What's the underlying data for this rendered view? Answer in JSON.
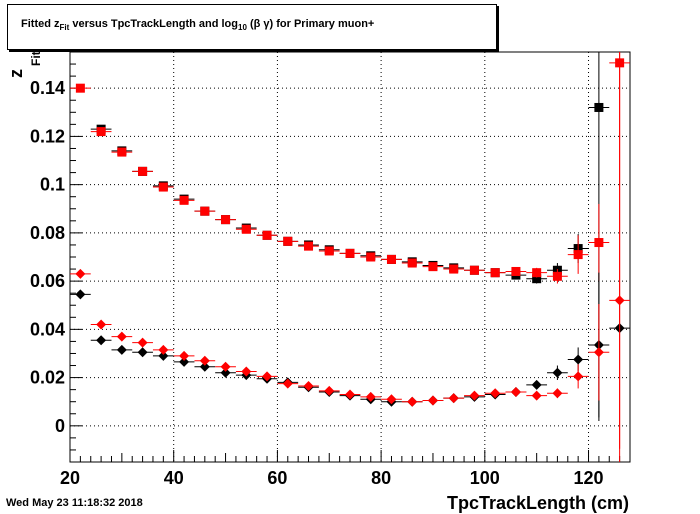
{
  "chart_data": {
    "type": "scatter",
    "title_prefix": "Fitted  z",
    "title_sub_fit": "Fit",
    "title_mid": "  versus TpcTrackLength and log",
    "title_sub_10": "10",
    "title_suffix": " (β γ) for Primary muon+",
    "xlabel": "TpcTrackLength (cm)",
    "ylabel_main": "z",
    "ylabel_sub": "Fit",
    "xlim": [
      20,
      128
    ],
    "ylim": [
      -0.015,
      0.155
    ],
    "xticks": [
      20,
      40,
      60,
      80,
      100,
      120
    ],
    "yticks": [
      0,
      0.02,
      0.04,
      0.06,
      0.08,
      0.1,
      0.12,
      0.14
    ],
    "ytick_labels": [
      "0",
      "0.02",
      "0.04",
      "0.06",
      "0.08",
      "0.1",
      "0.12",
      "0.14"
    ],
    "grid": true,
    "x_bin_half_width": 2,
    "series": [
      {
        "marker": "square",
        "color": "#000000",
        "points": [
          {
            "x": 26,
            "y": 0.123,
            "err": 0.0015
          },
          {
            "x": 30,
            "y": 0.114,
            "err": 0.0012
          },
          {
            "x": 34,
            "y": 0.1055,
            "err": 0.001
          },
          {
            "x": 38,
            "y": 0.0995,
            "err": 0.001
          },
          {
            "x": 42,
            "y": 0.094,
            "err": 0.001
          },
          {
            "x": 46,
            "y": 0.089,
            "err": 0.001
          },
          {
            "x": 50,
            "y": 0.0855,
            "err": 0.001
          },
          {
            "x": 54,
            "y": 0.082,
            "err": 0.001
          },
          {
            "x": 58,
            "y": 0.079,
            "err": 0.001
          },
          {
            "x": 62,
            "y": 0.0765,
            "err": 0.001
          },
          {
            "x": 66,
            "y": 0.075,
            "err": 0.001
          },
          {
            "x": 70,
            "y": 0.073,
            "err": 0.001
          },
          {
            "x": 74,
            "y": 0.0715,
            "err": 0.001
          },
          {
            "x": 78,
            "y": 0.0705,
            "err": 0.001
          },
          {
            "x": 82,
            "y": 0.069,
            "err": 0.001
          },
          {
            "x": 86,
            "y": 0.068,
            "err": 0.001
          },
          {
            "x": 90,
            "y": 0.0665,
            "err": 0.001
          },
          {
            "x": 94,
            "y": 0.0655,
            "err": 0.001
          },
          {
            "x": 98,
            "y": 0.0645,
            "err": 0.001
          },
          {
            "x": 102,
            "y": 0.0635,
            "err": 0.001
          },
          {
            "x": 106,
            "y": 0.0625,
            "err": 0.0015
          },
          {
            "x": 110,
            "y": 0.061,
            "err": 0.002
          },
          {
            "x": 114,
            "y": 0.0645,
            "err": 0.003
          },
          {
            "x": 118,
            "y": 0.0735,
            "err": 0.006
          },
          {
            "x": 122,
            "y": 0.132,
            "err": 0.13
          }
        ]
      },
      {
        "marker": "square",
        "color": "#ff0000",
        "points": [
          {
            "x": 22,
            "y": 0.14,
            "err": 0.001
          },
          {
            "x": 26,
            "y": 0.122,
            "err": 0.0015
          },
          {
            "x": 30,
            "y": 0.1135,
            "err": 0.0012
          },
          {
            "x": 34,
            "y": 0.1055,
            "err": 0.001
          },
          {
            "x": 38,
            "y": 0.099,
            "err": 0.001
          },
          {
            "x": 42,
            "y": 0.0935,
            "err": 0.001
          },
          {
            "x": 46,
            "y": 0.089,
            "err": 0.001
          },
          {
            "x": 50,
            "y": 0.0855,
            "err": 0.001
          },
          {
            "x": 54,
            "y": 0.0815,
            "err": 0.001
          },
          {
            "x": 58,
            "y": 0.079,
            "err": 0.001
          },
          {
            "x": 62,
            "y": 0.0765,
            "err": 0.001
          },
          {
            "x": 66,
            "y": 0.0745,
            "err": 0.001
          },
          {
            "x": 70,
            "y": 0.0725,
            "err": 0.001
          },
          {
            "x": 74,
            "y": 0.0715,
            "err": 0.001
          },
          {
            "x": 78,
            "y": 0.07,
            "err": 0.001
          },
          {
            "x": 82,
            "y": 0.069,
            "err": 0.001
          },
          {
            "x": 86,
            "y": 0.0675,
            "err": 0.001
          },
          {
            "x": 90,
            "y": 0.066,
            "err": 0.001
          },
          {
            "x": 94,
            "y": 0.065,
            "err": 0.001
          },
          {
            "x": 98,
            "y": 0.0645,
            "err": 0.001
          },
          {
            "x": 102,
            "y": 0.0635,
            "err": 0.001
          },
          {
            "x": 106,
            "y": 0.064,
            "err": 0.0015
          },
          {
            "x": 110,
            "y": 0.0635,
            "err": 0.002
          },
          {
            "x": 114,
            "y": 0.062,
            "err": 0.003
          },
          {
            "x": 118,
            "y": 0.071,
            "err": 0.008
          },
          {
            "x": 122,
            "y": 0.076,
            "err": 0.016
          },
          {
            "x": 126,
            "y": 0.1505,
            "err": 0.16
          }
        ]
      },
      {
        "marker": "diamond",
        "color": "#000000",
        "points": [
          {
            "x": 22,
            "y": 0.0545,
            "err": 0.0008
          },
          {
            "x": 26,
            "y": 0.0355,
            "err": 0.0008
          },
          {
            "x": 30,
            "y": 0.0315,
            "err": 0.0008
          },
          {
            "x": 34,
            "y": 0.0305,
            "err": 0.0008
          },
          {
            "x": 38,
            "y": 0.029,
            "err": 0.0008
          },
          {
            "x": 42,
            "y": 0.0265,
            "err": 0.0008
          },
          {
            "x": 46,
            "y": 0.0245,
            "err": 0.0008
          },
          {
            "x": 50,
            "y": 0.022,
            "err": 0.0008
          },
          {
            "x": 54,
            "y": 0.021,
            "err": 0.0008
          },
          {
            "x": 58,
            "y": 0.0195,
            "err": 0.0008
          },
          {
            "x": 62,
            "y": 0.018,
            "err": 0.0008
          },
          {
            "x": 66,
            "y": 0.016,
            "err": 0.0008
          },
          {
            "x": 70,
            "y": 0.014,
            "err": 0.0008
          },
          {
            "x": 74,
            "y": 0.0125,
            "err": 0.0008
          },
          {
            "x": 78,
            "y": 0.011,
            "err": 0.0008
          },
          {
            "x": 82,
            "y": 0.01,
            "err": 0.0008
          },
          {
            "x": 86,
            "y": 0.01,
            "err": 0.0008
          },
          {
            "x": 90,
            "y": 0.0105,
            "err": 0.0008
          },
          {
            "x": 94,
            "y": 0.0115,
            "err": 0.0008
          },
          {
            "x": 98,
            "y": 0.012,
            "err": 0.0008
          },
          {
            "x": 102,
            "y": 0.013,
            "err": 0.0008
          },
          {
            "x": 106,
            "y": 0.014,
            "err": 0.001
          },
          {
            "x": 110,
            "y": 0.017,
            "err": 0.0015
          },
          {
            "x": 114,
            "y": 0.022,
            "err": 0.003
          },
          {
            "x": 118,
            "y": 0.0275,
            "err": 0.005
          },
          {
            "x": 122,
            "y": 0.0335,
            "err": 0.03
          },
          {
            "x": 126,
            "y": 0.0405,
            "err": 0.0015
          }
        ]
      },
      {
        "marker": "diamond",
        "color": "#ff0000",
        "points": [
          {
            "x": 22,
            "y": 0.063,
            "err": 0.0008
          },
          {
            "x": 26,
            "y": 0.042,
            "err": 0.0008
          },
          {
            "x": 30,
            "y": 0.037,
            "err": 0.0008
          },
          {
            "x": 34,
            "y": 0.0345,
            "err": 0.0008
          },
          {
            "x": 38,
            "y": 0.0315,
            "err": 0.0008
          },
          {
            "x": 42,
            "y": 0.029,
            "err": 0.0008
          },
          {
            "x": 46,
            "y": 0.027,
            "err": 0.0008
          },
          {
            "x": 50,
            "y": 0.0245,
            "err": 0.0008
          },
          {
            "x": 54,
            "y": 0.0225,
            "err": 0.0008
          },
          {
            "x": 58,
            "y": 0.0205,
            "err": 0.0008
          },
          {
            "x": 62,
            "y": 0.0175,
            "err": 0.0008
          },
          {
            "x": 66,
            "y": 0.0165,
            "err": 0.0008
          },
          {
            "x": 70,
            "y": 0.0145,
            "err": 0.0008
          },
          {
            "x": 74,
            "y": 0.013,
            "err": 0.0008
          },
          {
            "x": 78,
            "y": 0.012,
            "err": 0.0008
          },
          {
            "x": 82,
            "y": 0.011,
            "err": 0.0008
          },
          {
            "x": 86,
            "y": 0.01,
            "err": 0.0008
          },
          {
            "x": 90,
            "y": 0.0105,
            "err": 0.0008
          },
          {
            "x": 94,
            "y": 0.0115,
            "err": 0.0008
          },
          {
            "x": 98,
            "y": 0.0125,
            "err": 0.0008
          },
          {
            "x": 102,
            "y": 0.0135,
            "err": 0.0008
          },
          {
            "x": 106,
            "y": 0.014,
            "err": 0.001
          },
          {
            "x": 110,
            "y": 0.0125,
            "err": 0.0015
          },
          {
            "x": 114,
            "y": 0.0135,
            "err": 0.002
          },
          {
            "x": 118,
            "y": 0.0205,
            "err": 0.005
          },
          {
            "x": 122,
            "y": 0.0305,
            "err": 0.02
          },
          {
            "x": 126,
            "y": 0.052,
            "err": 0.2
          }
        ]
      }
    ]
  },
  "timestamp": "Wed May 23 11:18:32 2018"
}
